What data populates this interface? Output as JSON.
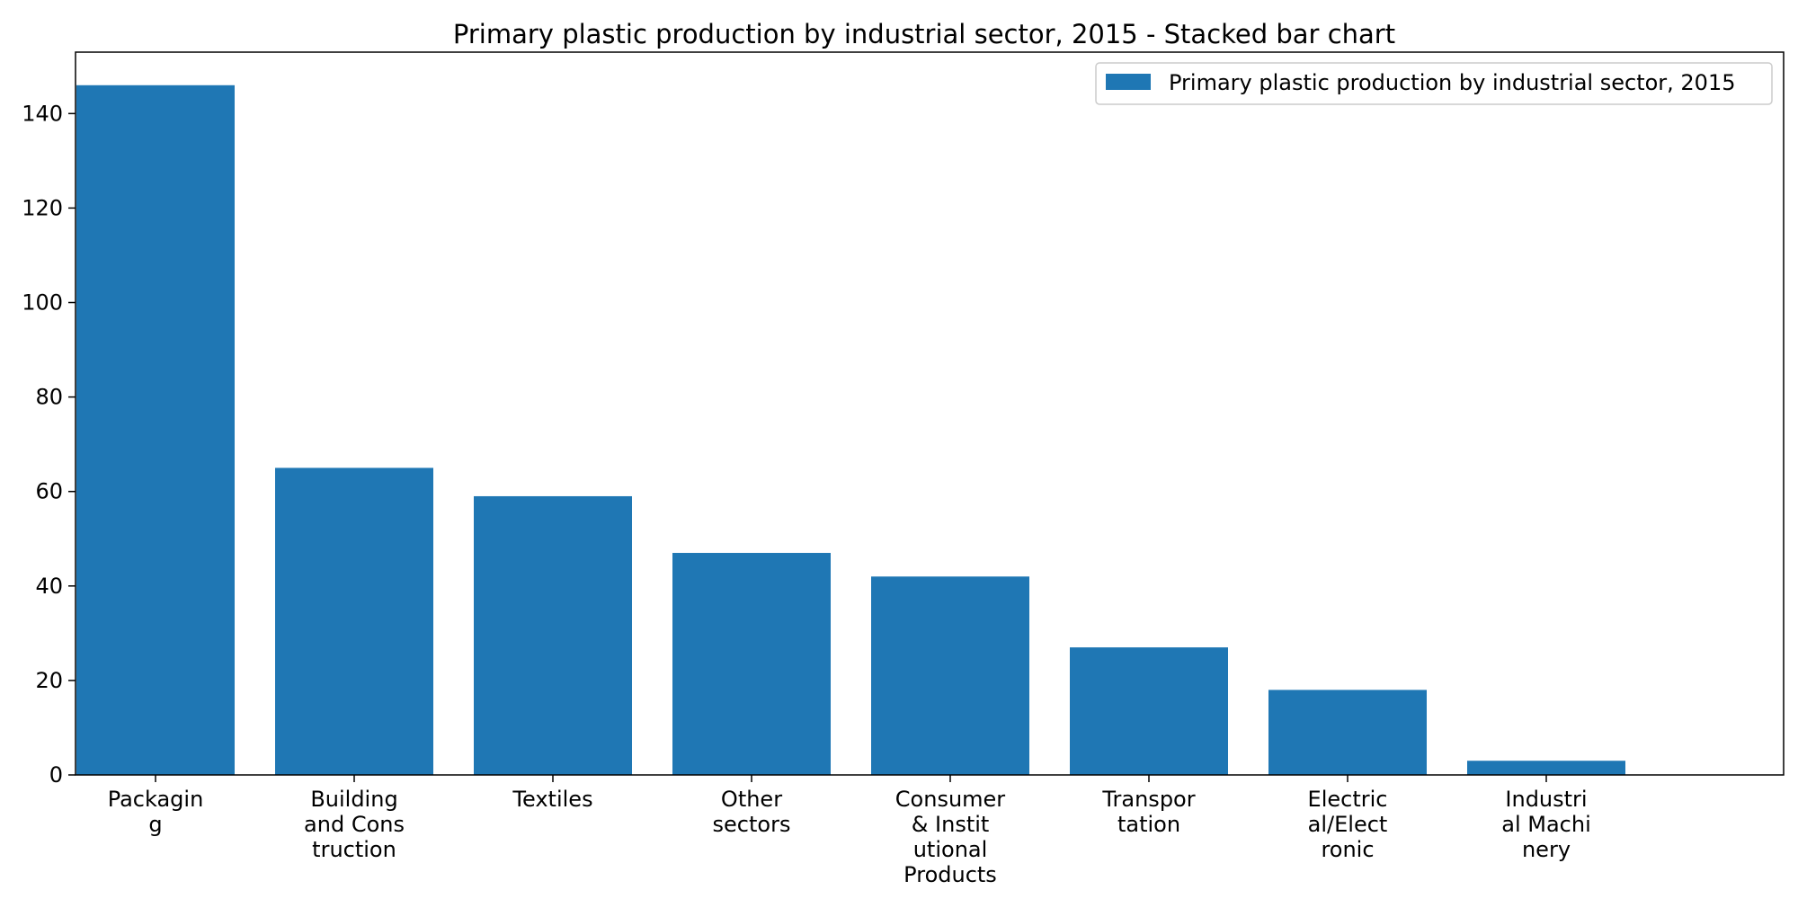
{
  "chart_data": {
    "type": "bar",
    "title": "Primary plastic production by industrial sector, 2015 - Stacked bar chart",
    "xlabel": "",
    "ylabel": "",
    "categories": [
      [
        "Packagin",
        "g"
      ],
      [
        "Building",
        "and Cons",
        "truction"
      ],
      [
        "Textiles"
      ],
      [
        "Other",
        "sectors"
      ],
      [
        "Consumer",
        "& Instit",
        "utional",
        "Products"
      ],
      [
        "Transpor",
        "tation"
      ],
      [
        "Electric",
        "al/Elect",
        "ronic"
      ],
      [
        "Industri",
        "al Machi",
        "nery"
      ]
    ],
    "series": [
      {
        "name": "Primary plastic production by industrial sector, 2015",
        "values": [
          146,
          65,
          59,
          47,
          42,
          27,
          18,
          3
        ],
        "color": "#1f77b4"
      }
    ],
    "ylim": [
      0,
      153
    ],
    "yticks": [
      0,
      20,
      40,
      60,
      80,
      100,
      120,
      140
    ],
    "grid": false,
    "legend_position": "top-right"
  }
}
